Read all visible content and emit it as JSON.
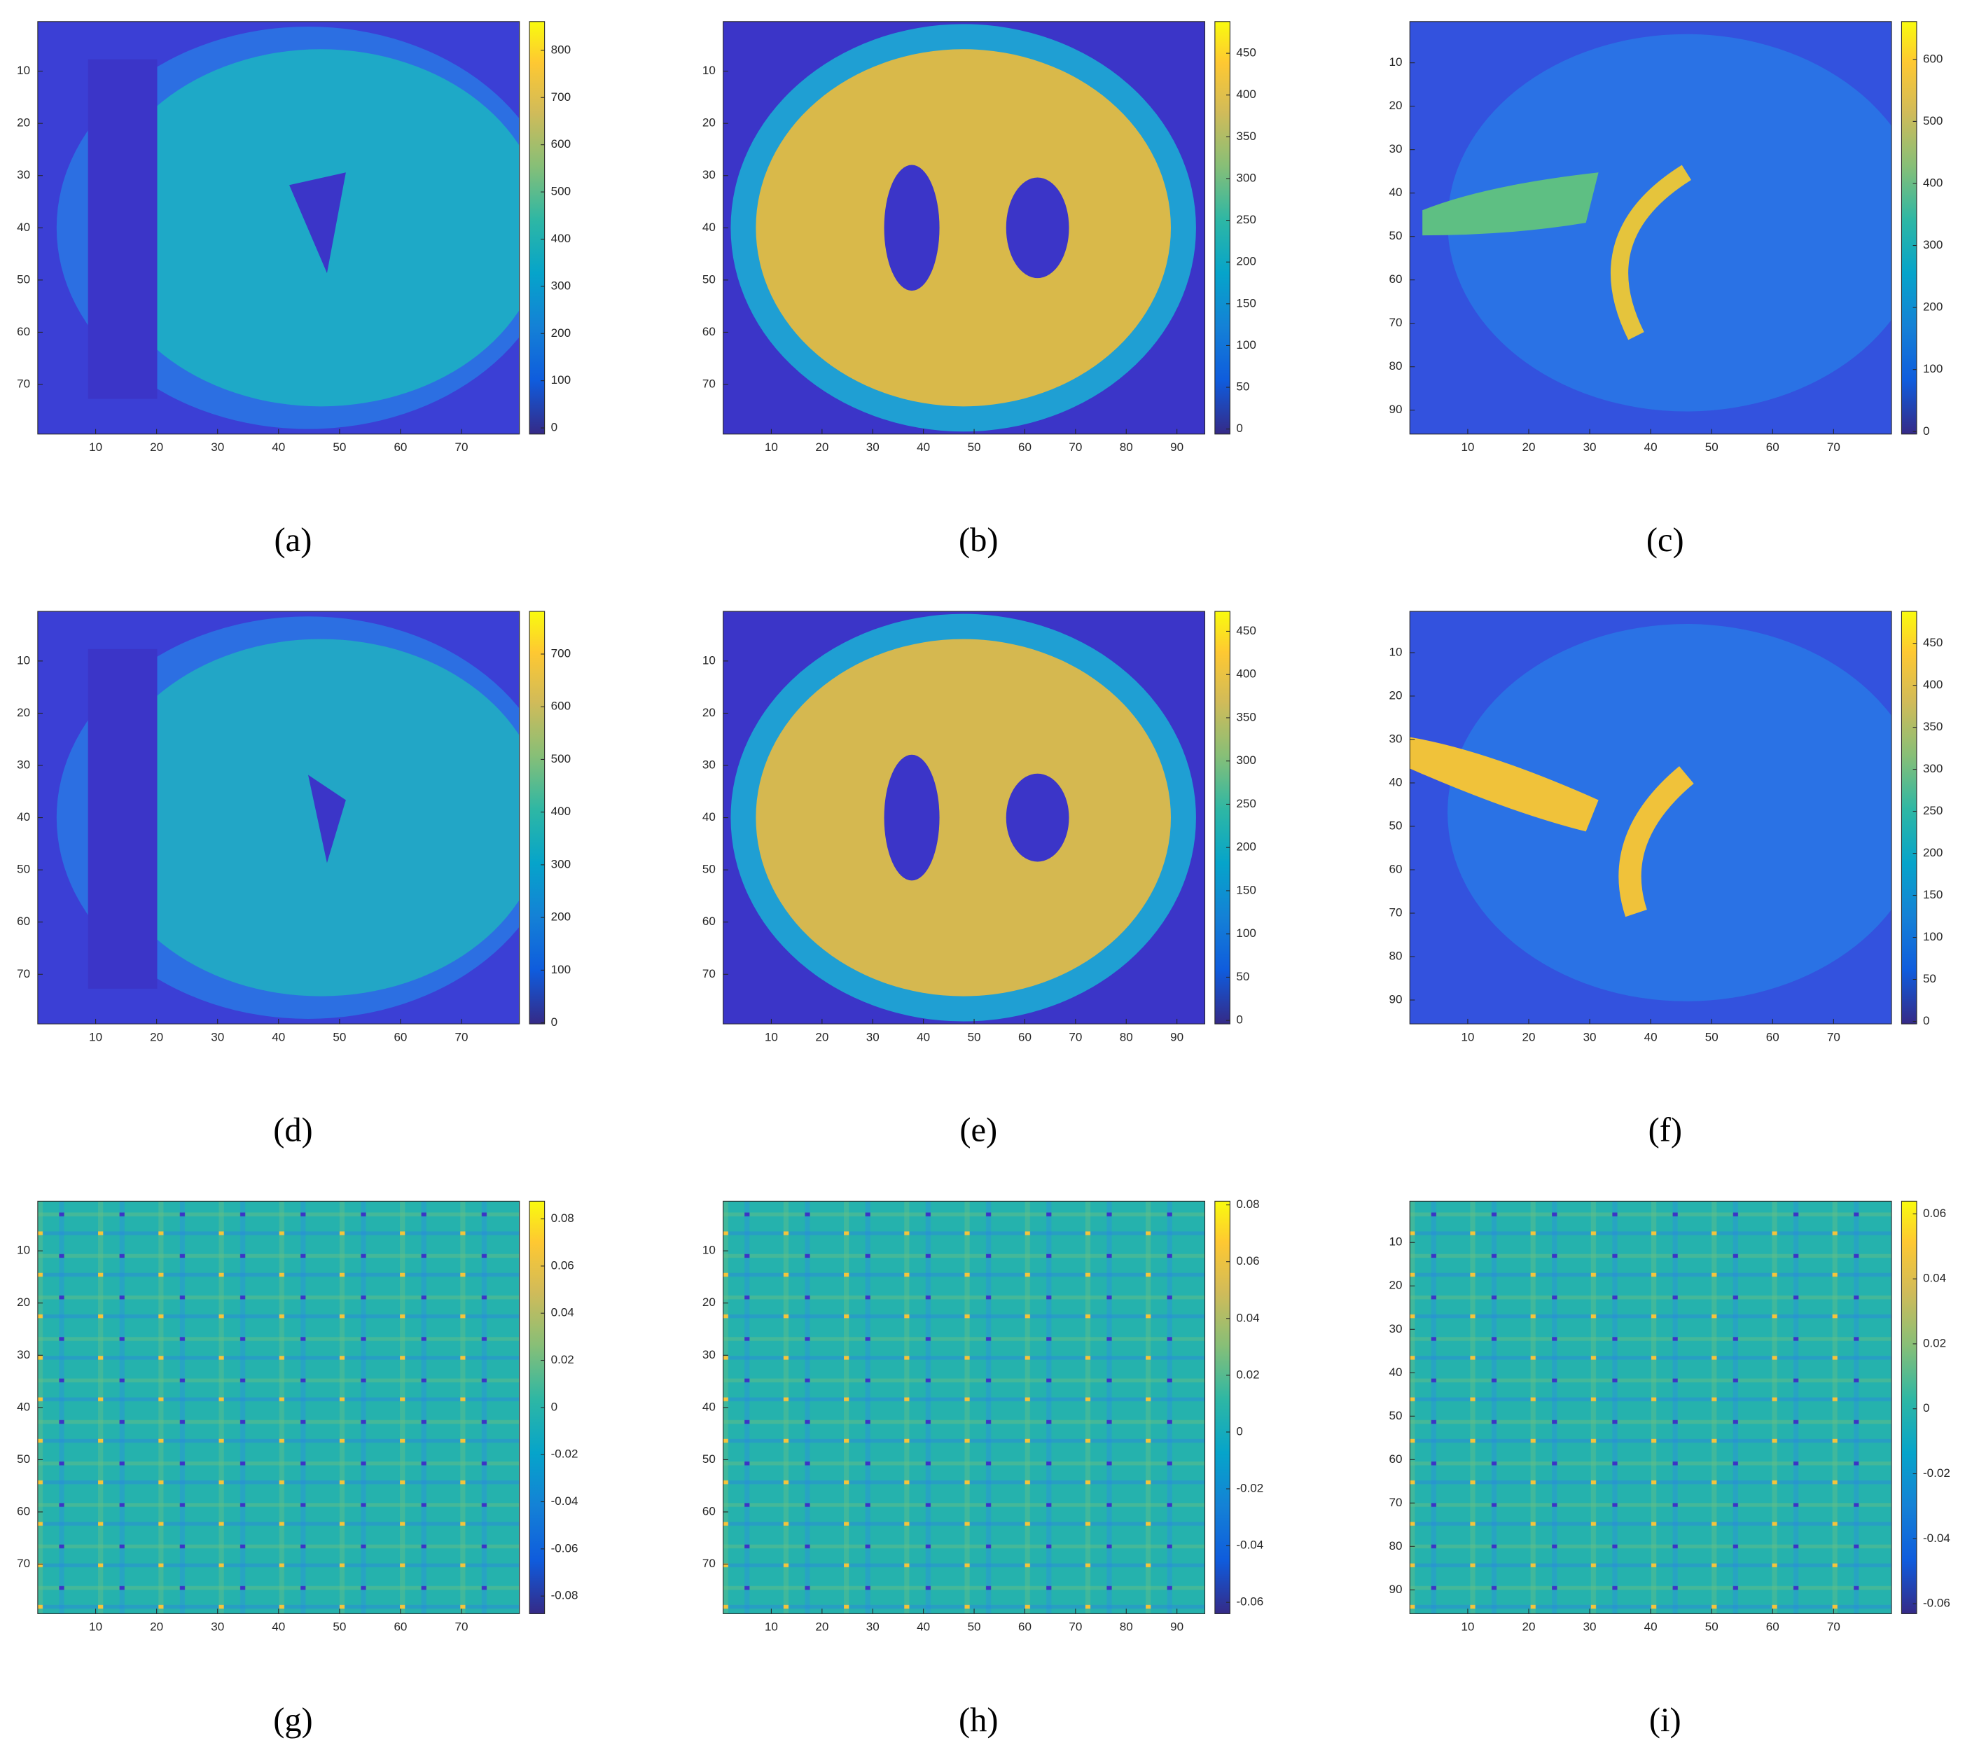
{
  "chart_data": [
    {
      "type": "heatmap",
      "caption": "(a)",
      "xlim": [
        0.5,
        79.5
      ],
      "ylim": [
        0.5,
        79.5
      ],
      "xticks": [
        10,
        20,
        30,
        40,
        50,
        60,
        70
      ],
      "yticks": [
        10,
        20,
        30,
        40,
        50,
        60,
        70
      ],
      "clim": [
        -13,
        861
      ],
      "cticks": [
        0,
        100,
        200,
        300,
        400,
        500,
        600,
        700,
        800
      ]
    },
    {
      "type": "heatmap",
      "caption": "(b)",
      "xlim": [
        0.5,
        95.5
      ],
      "ylim": [
        0.5,
        79.5
      ],
      "xticks": [
        10,
        20,
        30,
        40,
        50,
        60,
        70,
        80,
        90
      ],
      "yticks": [
        10,
        20,
        30,
        40,
        50,
        60,
        70
      ],
      "clim": [
        -6,
        488
      ],
      "cticks": [
        0,
        50,
        100,
        150,
        200,
        250,
        300,
        350,
        400,
        450
      ]
    },
    {
      "type": "heatmap",
      "caption": "(c)",
      "xlim": [
        0.5,
        79.5
      ],
      "ylim": [
        0.5,
        95.5
      ],
      "xticks": [
        10,
        20,
        30,
        40,
        50,
        60,
        70
      ],
      "yticks": [
        10,
        20,
        30,
        40,
        50,
        60,
        70,
        80,
        90
      ],
      "clim": [
        -4,
        661
      ],
      "cticks": [
        0,
        100,
        200,
        300,
        400,
        500,
        600
      ]
    },
    {
      "type": "heatmap",
      "caption": "(d)",
      "xlim": [
        0.5,
        79.5
      ],
      "ylim": [
        0.5,
        79.5
      ],
      "xticks": [
        10,
        20,
        30,
        40,
        50,
        60,
        70
      ],
      "yticks": [
        10,
        20,
        30,
        40,
        50,
        60,
        70
      ],
      "clim": [
        -2,
        781
      ],
      "cticks": [
        0,
        100,
        200,
        300,
        400,
        500,
        600,
        700
      ]
    },
    {
      "type": "heatmap",
      "caption": "(e)",
      "xlim": [
        0.5,
        95.5
      ],
      "ylim": [
        0.5,
        79.5
      ],
      "xticks": [
        10,
        20,
        30,
        40,
        50,
        60,
        70,
        80,
        90
      ],
      "yticks": [
        10,
        20,
        30,
        40,
        50,
        60,
        70
      ],
      "clim": [
        -4,
        473
      ],
      "cticks": [
        0,
        50,
        100,
        150,
        200,
        250,
        300,
        350,
        400,
        450
      ]
    },
    {
      "type": "heatmap",
      "caption": "(f)",
      "xlim": [
        0.5,
        79.5
      ],
      "ylim": [
        0.5,
        95.5
      ],
      "xticks": [
        10,
        20,
        30,
        40,
        50,
        60,
        70
      ],
      "yticks": [
        10,
        20,
        30,
        40,
        50,
        60,
        70,
        80,
        90
      ],
      "clim": [
        -3,
        488
      ],
      "cticks": [
        0,
        50,
        100,
        150,
        200,
        250,
        300,
        350,
        400,
        450
      ]
    },
    {
      "type": "heatmap",
      "caption": "(g)",
      "xlim": [
        0.5,
        79.5
      ],
      "ylim": [
        0.5,
        79.5
      ],
      "xticks": [
        10,
        20,
        30,
        40,
        50,
        60,
        70
      ],
      "yticks": [
        10,
        20,
        30,
        40,
        50,
        60,
        70
      ],
      "clim": [
        -0.0875,
        0.0875
      ],
      "cticks": [
        -0.08,
        -0.06,
        -0.04,
        -0.02,
        0,
        0.02,
        0.04,
        0.06,
        0.08
      ]
    },
    {
      "type": "heatmap",
      "caption": "(h)",
      "xlim": [
        0.5,
        95.5
      ],
      "ylim": [
        0.5,
        79.5
      ],
      "xticks": [
        10,
        20,
        30,
        40,
        50,
        60,
        70,
        80,
        90
      ],
      "yticks": [
        10,
        20,
        30,
        40,
        50,
        60,
        70
      ],
      "clim": [
        -0.064,
        0.0813
      ],
      "cticks": [
        -0.06,
        -0.04,
        -0.02,
        0,
        0.02,
        0.04,
        0.06,
        0.08
      ]
    },
    {
      "type": "heatmap",
      "caption": "(i)",
      "xlim": [
        0.5,
        79.5
      ],
      "ylim": [
        0.5,
        95.5
      ],
      "xticks": [
        10,
        20,
        30,
        40,
        50,
        60,
        70
      ],
      "yticks": [
        10,
        20,
        30,
        40,
        50,
        60,
        70,
        80,
        90
      ],
      "clim": [
        -0.0631,
        0.0639
      ],
      "cticks": [
        -0.06,
        -0.04,
        -0.02,
        0,
        0.02,
        0.04,
        0.06
      ]
    }
  ]
}
